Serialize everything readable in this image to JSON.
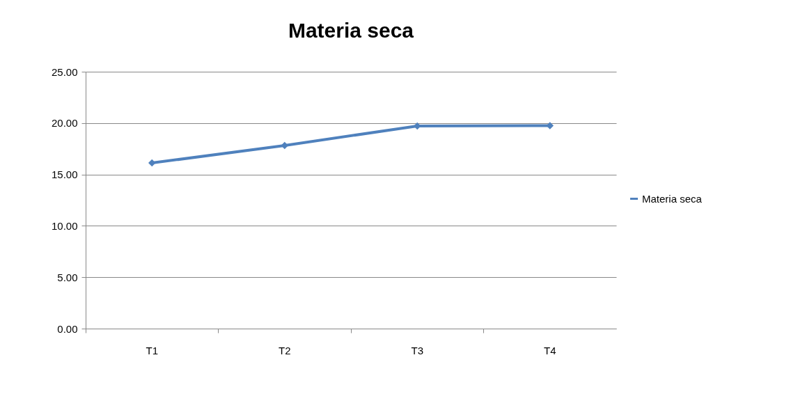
{
  "chart_data": {
    "type": "line",
    "title": "Materia seca",
    "categories": [
      "T1",
      "T2",
      "T3",
      "T4"
    ],
    "series": [
      {
        "name": "Materia seca",
        "color": "#4f81bd",
        "values": [
          16.12,
          17.82,
          19.72,
          19.75
        ]
      }
    ],
    "ylim": [
      0,
      25
    ],
    "yticks": [
      {
        "value": 0,
        "label": "0.00"
      },
      {
        "value": 5,
        "label": "5.00"
      },
      {
        "value": 10,
        "label": "10.00"
      },
      {
        "value": 15,
        "label": "15.00"
      },
      {
        "value": 20,
        "label": "20.00"
      },
      {
        "value": 25,
        "label": "25.00"
      }
    ],
    "grid": "y",
    "legend": "right",
    "marker": "diamond",
    "line_style": "solid"
  }
}
